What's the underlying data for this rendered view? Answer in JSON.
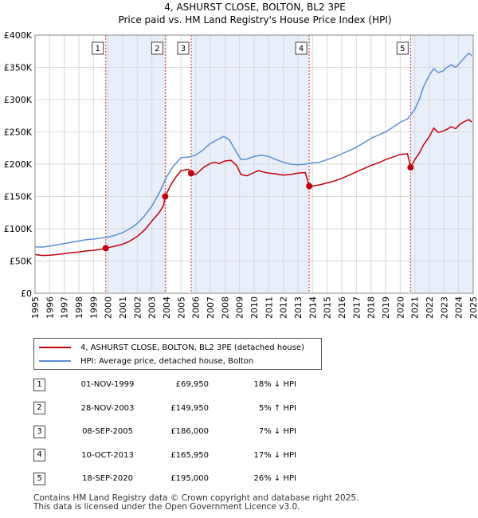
{
  "chart_data": {
    "type": "line",
    "title": "4, ASHURST CLOSE, BOLTON, BL2 3PE",
    "subtitle": "Price paid vs. HM Land Registry's House Price Index (HPI)",
    "x_range": [
      1995,
      2025
    ],
    "ylim": [
      0,
      400000
    ],
    "y_ticks": [
      {
        "value": 0,
        "label": "£0"
      },
      {
        "value": 50000,
        "label": "£50K"
      },
      {
        "value": 100000,
        "label": "£100K"
      },
      {
        "value": 150000,
        "label": "£150K"
      },
      {
        "value": 200000,
        "label": "£200K"
      },
      {
        "value": 250000,
        "label": "£250K"
      },
      {
        "value": 300000,
        "label": "£300K"
      },
      {
        "value": 350000,
        "label": "£350K"
      },
      {
        "value": 400000,
        "label": "£400K"
      }
    ],
    "x_ticks": [
      "1995",
      "1996",
      "1997",
      "1998",
      "1999",
      "2000",
      "2001",
      "2002",
      "2003",
      "2004",
      "2005",
      "2006",
      "2007",
      "2008",
      "2009",
      "2010",
      "2011",
      "2012",
      "2013",
      "2014",
      "2015",
      "2016",
      "2017",
      "2018",
      "2019",
      "2020",
      "2021",
      "2022",
      "2023",
      "2024",
      "2025"
    ],
    "grid": true,
    "colors": {
      "property": "#c0000b",
      "hpi": "#5b8fd1",
      "shade": "#e8eefa",
      "marker_line": "#d23030",
      "grid": "#d9d9d9"
    },
    "series": [
      {
        "name": "4, ASHURST CLOSE, BOLTON, BL2 3PE (detached house)",
        "key": "property",
        "x": [
          1995.0,
          1995.5,
          1996.0,
          1996.5,
          1997.0,
          1997.5,
          1998.0,
          1998.5,
          1999.0,
          1999.5,
          1999.84,
          2000.3,
          2001.0,
          2001.5,
          2002.0,
          2002.5,
          2003.0,
          2003.5,
          2003.8,
          2003.91,
          2004.3,
          2004.7,
          2005.0,
          2005.5,
          2005.69,
          2006.0,
          2006.3,
          2006.6,
          2007.0,
          2007.3,
          2007.6,
          2008.0,
          2008.4,
          2008.8,
          2009.1,
          2009.5,
          2010.0,
          2010.3,
          2010.6,
          2011.0,
          2011.5,
          2012.0,
          2012.5,
          2013.0,
          2013.5,
          2013.77,
          2014.0,
          2014.5,
          2015.0,
          2015.5,
          2016.0,
          2016.5,
          2017.0,
          2017.5,
          2018.0,
          2018.5,
          2019.0,
          2019.5,
          2020.0,
          2020.5,
          2020.71,
          2021.0,
          2021.3,
          2021.6,
          2022.0,
          2022.3,
          2022.6,
          2022.9,
          2023.2,
          2023.5,
          2023.8,
          2024.1,
          2024.4,
          2024.7,
          2024.9
        ],
        "y": [
          60000,
          58500,
          59000,
          60000,
          61500,
          63000,
          64000,
          65500,
          66500,
          68000,
          69950,
          72000,
          76000,
          81000,
          88000,
          98000,
          112000,
          125000,
          136000,
          149950,
          168000,
          182000,
          190000,
          192000,
          186000,
          184000,
          190000,
          196000,
          201000,
          203000,
          201000,
          205000,
          206000,
          198000,
          184000,
          182000,
          187000,
          190000,
          188000,
          186000,
          185000,
          183000,
          184000,
          186000,
          187000,
          165950,
          166000,
          168000,
          171000,
          174000,
          178000,
          183000,
          188000,
          193000,
          198000,
          202000,
          207000,
          211000,
          215000,
          216000,
          195000,
          207000,
          217000,
          230000,
          243000,
          256000,
          249000,
          251000,
          254000,
          258000,
          255000,
          262000,
          266000,
          269000,
          265000
        ]
      },
      {
        "name": "HPI: Average price, detached house, Bolton",
        "key": "hpi",
        "x": [
          1995.0,
          1995.5,
          1996.0,
          1996.5,
          1997.0,
          1997.5,
          1998.0,
          1998.5,
          1999.0,
          1999.5,
          2000.0,
          2000.5,
          2001.0,
          2001.5,
          2002.0,
          2002.5,
          2003.0,
          2003.5,
          2004.0,
          2004.5,
          2005.0,
          2005.5,
          2006.0,
          2006.5,
          2007.0,
          2007.5,
          2007.9,
          2008.3,
          2008.7,
          2009.1,
          2009.5,
          2010.0,
          2010.5,
          2011.0,
          2011.5,
          2012.0,
          2012.5,
          2013.0,
          2013.5,
          2014.0,
          2014.5,
          2015.0,
          2015.5,
          2016.0,
          2016.5,
          2017.0,
          2017.5,
          2018.0,
          2018.5,
          2019.0,
          2019.5,
          2020.0,
          2020.5,
          2021.0,
          2021.3,
          2021.6,
          2022.0,
          2022.3,
          2022.6,
          2022.9,
          2023.2,
          2023.5,
          2023.8,
          2024.1,
          2024.4,
          2024.7,
          2024.9
        ],
        "y": [
          72000,
          71500,
          73000,
          75000,
          77000,
          79000,
          81000,
          83000,
          84000,
          85500,
          87000,
          90000,
          94000,
          100000,
          108000,
          120000,
          135000,
          155000,
          180000,
          198000,
          210000,
          211000,
          214000,
          222000,
          232000,
          238000,
          243000,
          238000,
          222000,
          207000,
          208000,
          212000,
          214000,
          212000,
          207000,
          203000,
          200000,
          199000,
          200000,
          202000,
          203000,
          207000,
          211000,
          216000,
          221000,
          226000,
          233000,
          240000,
          245000,
          250000,
          257000,
          265000,
          270000,
          285000,
          300000,
          320000,
          338000,
          348000,
          342000,
          344000,
          350000,
          354000,
          350000,
          357000,
          365000,
          372000,
          368000
        ]
      }
    ],
    "sales": [
      {
        "n": "1",
        "x": 1999.84,
        "y": 69950
      },
      {
        "n": "2",
        "x": 2003.91,
        "y": 149950
      },
      {
        "n": "3",
        "x": 2005.69,
        "y": 186000
      },
      {
        "n": "4",
        "x": 2013.77,
        "y": 165950
      },
      {
        "n": "5",
        "x": 2020.71,
        "y": 195000
      }
    ]
  },
  "legend": {
    "property_label": "4, ASHURST CLOSE, BOLTON, BL2 3PE (detached house)",
    "hpi_label": "HPI: Average price, detached house, Bolton"
  },
  "table": [
    {
      "n": "1",
      "date": "01-NOV-1999",
      "price": "£69,950",
      "hpi": "18% ↓ HPI"
    },
    {
      "n": "2",
      "date": "28-NOV-2003",
      "price": "£149,950",
      "hpi": "5% ↑ HPI"
    },
    {
      "n": "3",
      "date": "08-SEP-2005",
      "price": "£186,000",
      "hpi": "7% ↓ HPI"
    },
    {
      "n": "4",
      "date": "10-OCT-2013",
      "price": "£165,950",
      "hpi": "17% ↓ HPI"
    },
    {
      "n": "5",
      "date": "18-SEP-2020",
      "price": "£195,000",
      "hpi": "26% ↓ HPI"
    }
  ],
  "footer": {
    "line1": "Contains HM Land Registry data © Crown copyright and database right 2025.",
    "line2": "This data is licensed under the Open Government Licence v3.0."
  }
}
